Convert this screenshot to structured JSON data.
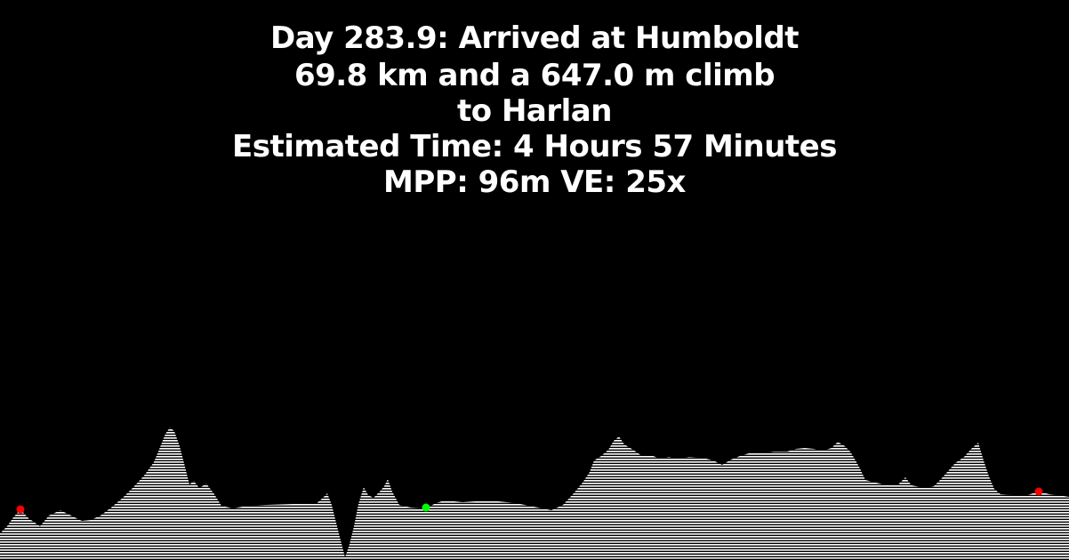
{
  "caption": {
    "line1": "Day 283.9: Arrived at Humboldt",
    "line2": "69.8 km and a 647.0 m climb",
    "line3": "to Harlan",
    "line4": "Estimated Time: 4 Hours 57 Minutes",
    "line5": "MPP: 96m VE: 25x"
  },
  "profile": {
    "fill_color": "#ffffff",
    "background_color": "#000000",
    "marker_colors": {
      "start": "#ff0000",
      "current": "#00ff00",
      "end": "#ff0000"
    }
  }
}
